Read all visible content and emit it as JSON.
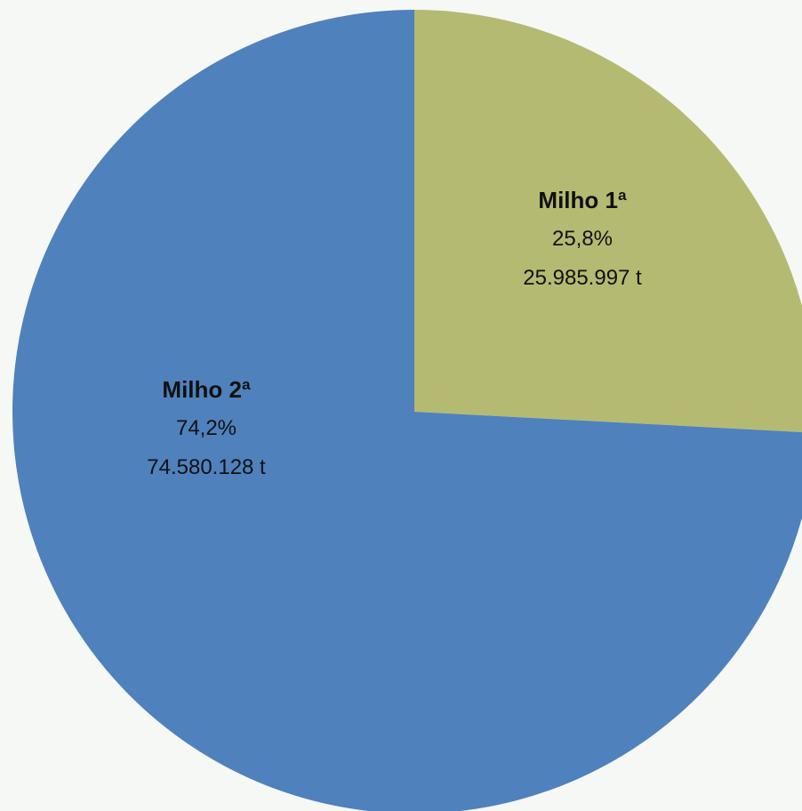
{
  "chart_data": {
    "type": "pie",
    "slices": [
      {
        "name": "Milho 1ª",
        "percent": 25.8,
        "percent_label": "25,8%",
        "value": 25985997,
        "value_label": "25.985.997 t",
        "color": "#b5ba72"
      },
      {
        "name": "Milho 2ª",
        "percent": 74.2,
        "percent_label": "74,2%",
        "value": 74580128,
        "value_label": "74.580.128 t",
        "color": "#4f81bd"
      }
    ]
  }
}
